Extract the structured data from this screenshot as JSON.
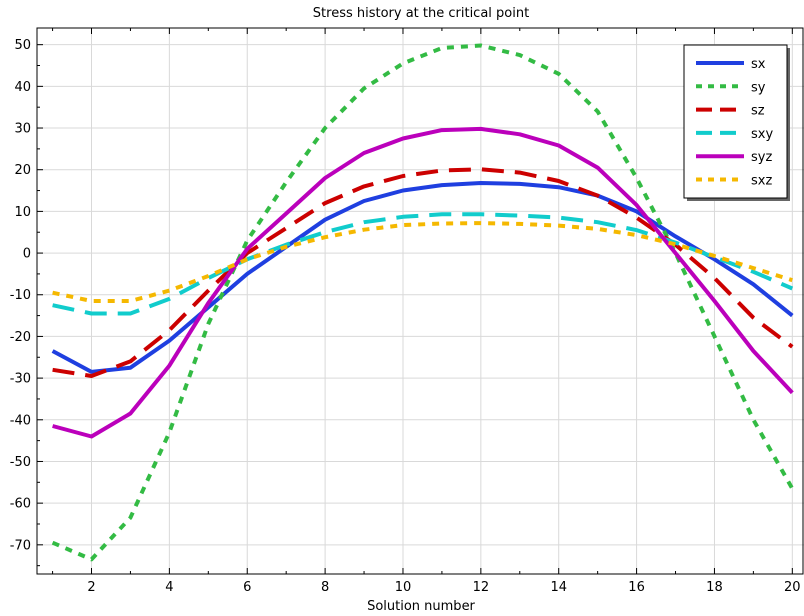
{
  "chart_data": {
    "type": "line",
    "title": "Stress history at the critical point",
    "xlabel": "Solution number",
    "ylabel": "",
    "xlim": [
      0.6,
      20.3
    ],
    "ylim": [
      -77,
      54
    ],
    "grid": true,
    "legend_position": "top-right",
    "x_ticks": [
      2,
      4,
      6,
      8,
      10,
      12,
      14,
      16,
      18,
      20
    ],
    "y_ticks": [
      -70,
      -60,
      -50,
      -40,
      -30,
      -20,
      -10,
      0,
      10,
      20,
      30,
      40,
      50
    ],
    "x": [
      1,
      2,
      3,
      4,
      5,
      6,
      7,
      8,
      9,
      10,
      11,
      12,
      13,
      14,
      15,
      16,
      17,
      18,
      19,
      20
    ],
    "series": [
      {
        "name": "sx",
        "color": "#1f3fe0",
        "dash": "solid",
        "values": [
          -23.5,
          -28.5,
          -27.5,
          -21,
          -13,
          -5,
          1.5,
          8,
          12.5,
          15,
          16.3,
          16.8,
          16.6,
          15.8,
          13.8,
          10,
          4,
          -1.5,
          -7.5,
          -15
        ]
      },
      {
        "name": "sy",
        "color": "#33bb44",
        "dash": "dotted",
        "values": [
          -69.5,
          -73.5,
          -63.5,
          -43,
          -17,
          3,
          17,
          30,
          39.5,
          45.5,
          49.2,
          49.8,
          47.5,
          43,
          34,
          18,
          0,
          -20,
          -40,
          -56.5
        ]
      },
      {
        "name": "sz",
        "color": "#cc0000",
        "dash": "dashed",
        "values": [
          -28,
          -29.5,
          -26,
          -18.5,
          -9,
          0,
          6,
          12,
          16,
          18.5,
          19.8,
          20.1,
          19.3,
          17.3,
          13.8,
          8.5,
          2,
          -6,
          -15.5,
          -22.5
        ]
      },
      {
        "name": "sxy",
        "color": "#11cccc",
        "dash": "dashed",
        "values": [
          -12.5,
          -14.5,
          -14.5,
          -11,
          -6,
          -1.5,
          2,
          5,
          7.4,
          8.7,
          9.3,
          9.3,
          9,
          8.5,
          7.4,
          5.5,
          2.5,
          -1,
          -4.5,
          -8.5
        ]
      },
      {
        "name": "syz",
        "color": "#bb00bb",
        "dash": "solid",
        "values": [
          -41.5,
          -44,
          -38.5,
          -27,
          -12,
          1,
          9.5,
          18,
          24,
          27.5,
          29.5,
          29.8,
          28.5,
          25.8,
          20.5,
          11.5,
          0,
          -11.5,
          -23.5,
          -33.5
        ]
      },
      {
        "name": "sxz",
        "color": "#f5b800",
        "dash": "dotted",
        "values": [
          -9.5,
          -11.5,
          -11.5,
          -9,
          -5.5,
          -1.5,
          1.5,
          3.8,
          5.6,
          6.7,
          7.1,
          7.2,
          7,
          6.6,
          5.8,
          4.3,
          2.1,
          -0.7,
          -3.6,
          -6.5
        ]
      }
    ]
  }
}
